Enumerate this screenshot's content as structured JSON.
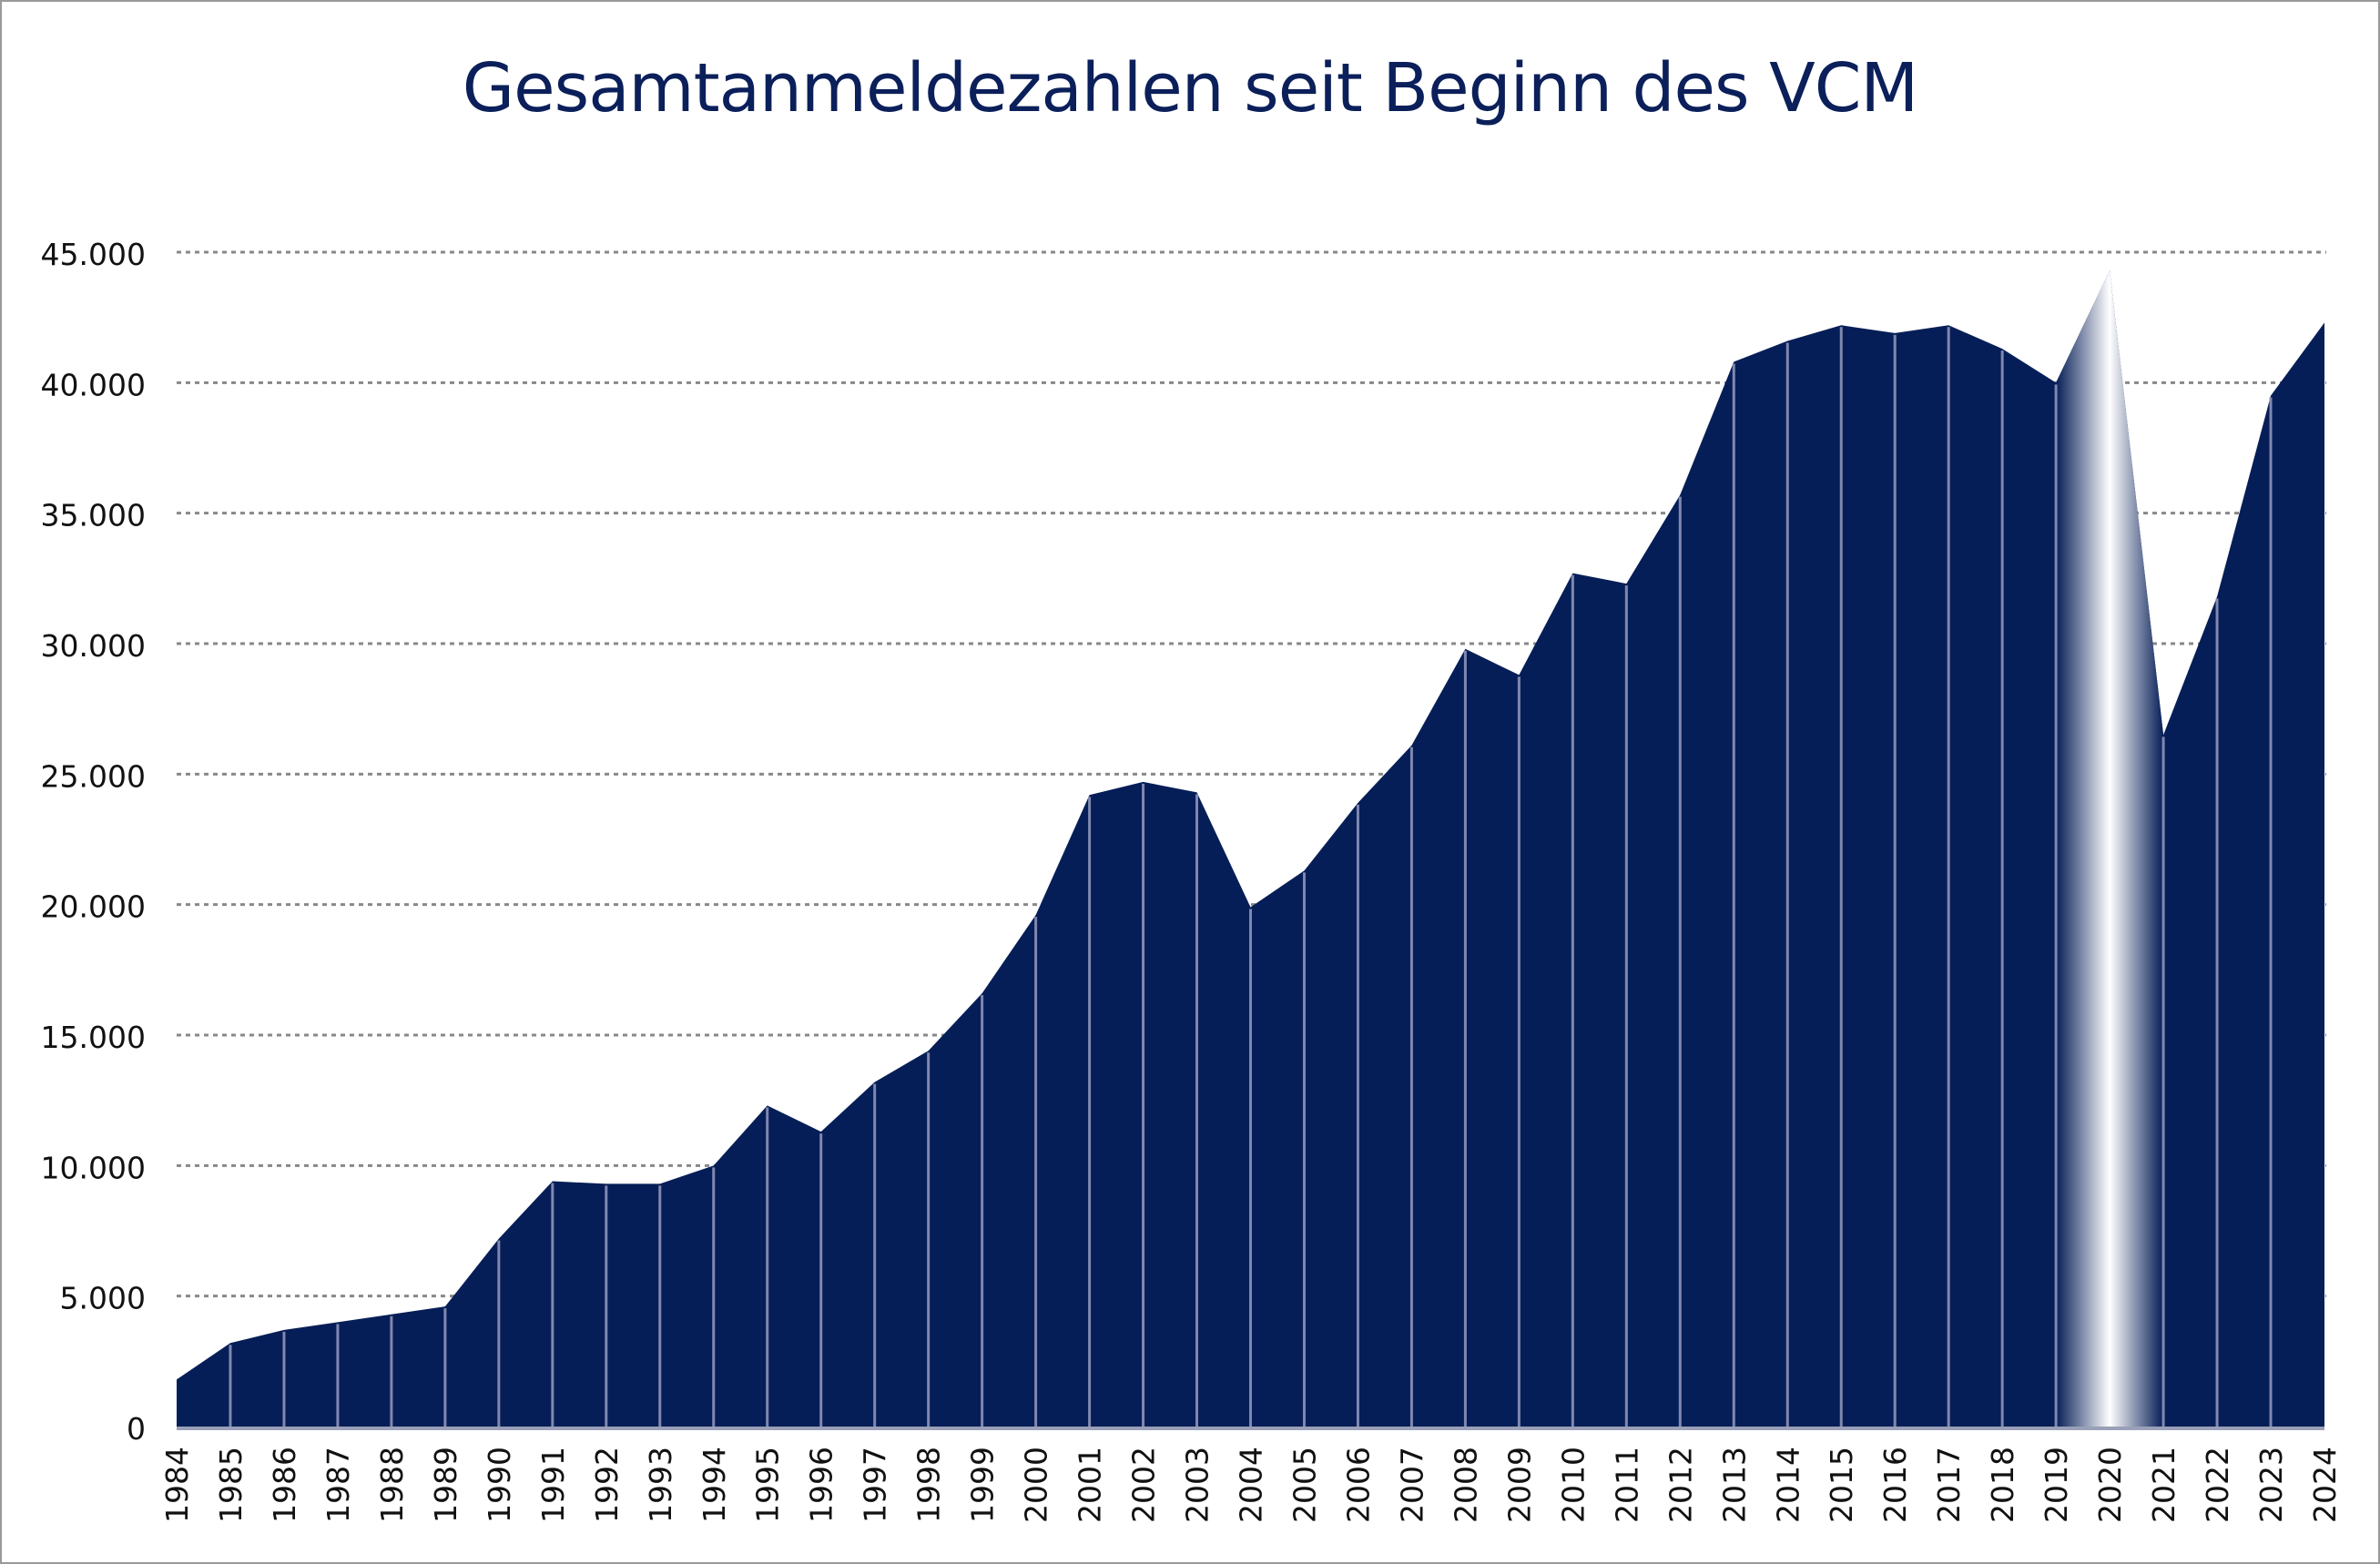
{
  "chart_data": {
    "type": "area",
    "title": "Gesamtanmeldezahlen seit Beginn des VCM",
    "xlabel": "",
    "ylabel": "",
    "ylim": [
      0,
      45000
    ],
    "yticks": [
      0,
      5000,
      10000,
      15000,
      20000,
      25000,
      30000,
      35000,
      40000,
      45000
    ],
    "ytick_labels": [
      "0",
      "5.000",
      "10.000",
      "15.000",
      "20.000",
      "25.000",
      "30.000",
      "35.000",
      "40.000",
      "45.000"
    ],
    "grid": "horizontal dotted",
    "categories": [
      "1984",
      "1985",
      "1986",
      "1987",
      "1988",
      "1989",
      "1990",
      "1991",
      "1992",
      "1993",
      "1994",
      "1995",
      "1996",
      "1997",
      "1998",
      "1999",
      "2000",
      "2001",
      "2002",
      "2003",
      "2004",
      "2005",
      "2006",
      "2007",
      "2008",
      "2009",
      "2010",
      "2011",
      "2012",
      "2013",
      "2014",
      "2015",
      "2016",
      "2017",
      "2018",
      "2019",
      "2020",
      "2021",
      "2022",
      "2023",
      "2024"
    ],
    "values": [
      1800,
      3200,
      3700,
      4000,
      4300,
      4600,
      7200,
      9400,
      9300,
      9300,
      10000,
      12300,
      11300,
      13200,
      14400,
      16600,
      19600,
      24200,
      24700,
      24300,
      19900,
      21300,
      23900,
      26100,
      29800,
      28800,
      32700,
      32300,
      35700,
      40800,
      41600,
      42200,
      41900,
      42200,
      41300,
      40000,
      44300,
      26500,
      31800,
      39500,
      42300
    ],
    "highlight_category": "2020",
    "colors": {
      "fill": "#061e57",
      "divider": "#8088b0",
      "grid": "#888888",
      "title": "#0b1f5a",
      "highlight_label": "#b0b0b0"
    }
  }
}
